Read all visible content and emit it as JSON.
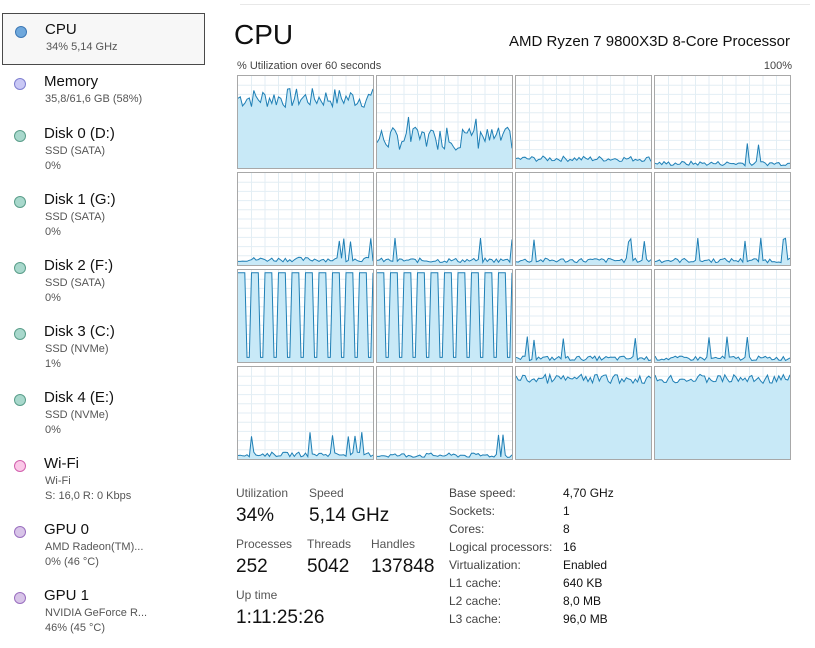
{
  "sidebar": {
    "items": [
      {
        "name": "CPU",
        "sub1": "34% 5,14 GHz",
        "sub2": "",
        "dot_color": "#6fa8dc",
        "dot_border": "#3d78b5"
      },
      {
        "name": "Memory",
        "sub1": "35,8/61,6 GB (58%)",
        "sub2": "",
        "dot_color": "#c9c8f5",
        "dot_border": "#7f7fd0"
      },
      {
        "name": "Disk 0 (D:)",
        "sub1": "SSD (SATA)",
        "sub2": "0%",
        "dot_color": "#a8d8cc",
        "dot_border": "#5a9e8a"
      },
      {
        "name": "Disk 1 (G:)",
        "sub1": "SSD (SATA)",
        "sub2": "0%",
        "dot_color": "#a8d8cc",
        "dot_border": "#5a9e8a"
      },
      {
        "name": "Disk 2 (F:)",
        "sub1": "SSD (SATA)",
        "sub2": "0%",
        "dot_color": "#a8d8cc",
        "dot_border": "#5a9e8a"
      },
      {
        "name": "Disk 3 (C:)",
        "sub1": "SSD (NVMe)",
        "sub2": "1%",
        "dot_color": "#a8d8cc",
        "dot_border": "#5a9e8a"
      },
      {
        "name": "Disk 4 (E:)",
        "sub1": "SSD (NVMe)",
        "sub2": "0%",
        "dot_color": "#a8d8cc",
        "dot_border": "#5a9e8a"
      },
      {
        "name": "Wi-Fi",
        "sub1": "Wi-Fi",
        "sub2": "S: 16,0 R: 0 Kbps",
        "dot_color": "#fbc8e8",
        "dot_border": "#d260ad"
      },
      {
        "name": "GPU 0",
        "sub1": "AMD Radeon(TM)...",
        "sub2": "0% (46 °C)",
        "dot_color": "#d8c4e8",
        "dot_border": "#9a6fbf"
      },
      {
        "name": "GPU 1",
        "sub1": "NVIDIA GeForce R...",
        "sub2": "46% (45 °C)",
        "dot_color": "#d8c4e8",
        "dot_border": "#9a6fbf"
      }
    ]
  },
  "header": {
    "title": "CPU",
    "processor": "AMD Ryzen 7 9800X3D 8-Core Processor",
    "util_label": "% Utilization over 60 seconds",
    "max_label": "100%"
  },
  "graph_colors": {
    "line": "#1f7fb5",
    "fill": "#c8e9f7",
    "border": "#a8a8a8",
    "grid": "#e3eef4"
  },
  "core_levels": [
    [
      0.76,
      0.32,
      0.1,
      0.05
    ],
    [
      0.06,
      0.05,
      0.05,
      0.05
    ],
    [
      0.55,
      0.55,
      0.04,
      0.04
    ],
    [
      0.05,
      0.04,
      0.92,
      0.92
    ]
  ],
  "core_patterns": [
    [
      "high",
      "mid",
      "low",
      "flat"
    ],
    [
      "flat",
      "flat",
      "flat",
      "flat"
    ],
    [
      "square",
      "square",
      "flat",
      "flat"
    ],
    [
      "flat",
      "flat",
      "top",
      "top"
    ]
  ],
  "stats": {
    "utilization": {
      "label": "Utilization",
      "value": "34%"
    },
    "speed": {
      "label": "Speed",
      "value": "5,14 GHz"
    },
    "processes": {
      "label": "Processes",
      "value": "252"
    },
    "threads": {
      "label": "Threads",
      "value": "5042"
    },
    "handles": {
      "label": "Handles",
      "value": "137848"
    },
    "uptime": {
      "label": "Up time",
      "value": "1:11:25:26"
    }
  },
  "specs": [
    {
      "label": "Base speed:",
      "value": "4,70 GHz"
    },
    {
      "label": "Sockets:",
      "value": "1"
    },
    {
      "label": "Cores:",
      "value": "8"
    },
    {
      "label": "Logical processors:",
      "value": "16"
    },
    {
      "label": "Virtualization:",
      "value": "Enabled"
    },
    {
      "label": "L1 cache:",
      "value": "640 KB"
    },
    {
      "label": "L2 cache:",
      "value": "8,0 MB"
    },
    {
      "label": "L3 cache:",
      "value": "96,0 MB"
    }
  ]
}
